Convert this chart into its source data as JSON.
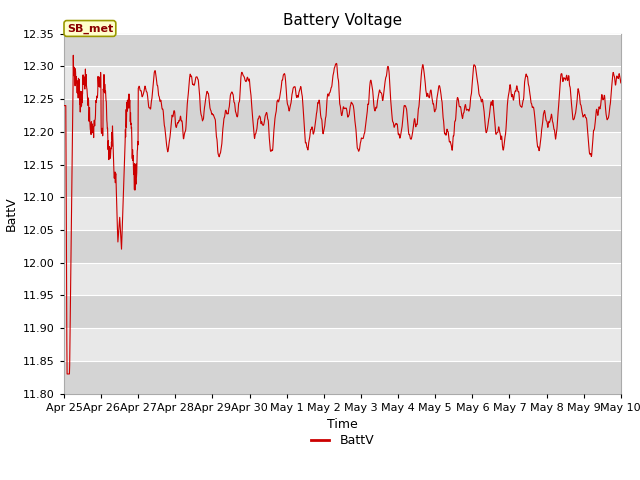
{
  "title": "Battery Voltage",
  "xlabel": "Time",
  "ylabel": "BattV",
  "legend_label": "BattV",
  "line_color": "#cc0000",
  "background_color": "#ffffff",
  "plot_bg_color": "#e8e8e8",
  "band_color_light": "#d8d8d8",
  "band_color_white": "#f0f0f0",
  "ylim": [
    11.8,
    12.35
  ],
  "yticks": [
    11.8,
    11.85,
    11.9,
    11.95,
    12.0,
    12.05,
    12.1,
    12.15,
    12.2,
    12.25,
    12.3,
    12.35
  ],
  "xtick_labels": [
    "Apr 25",
    "Apr 26",
    "Apr 27",
    "Apr 28",
    "Apr 29",
    "Apr 30",
    "May 1",
    "May 2",
    "May 3",
    "May 4",
    "May 5",
    "May 6",
    "May 7",
    "May 8",
    "May 9",
    "May 10"
  ],
  "annotation_text": "SB_met",
  "annotation_color": "#8b0000",
  "annotation_bg": "#ffffcc",
  "annotation_border": "#999900",
  "title_fontsize": 11,
  "axis_fontsize": 9,
  "tick_fontsize": 8,
  "legend_fontsize": 9,
  "grid_color": "#ffffff",
  "spine_color": "#aaaaaa"
}
